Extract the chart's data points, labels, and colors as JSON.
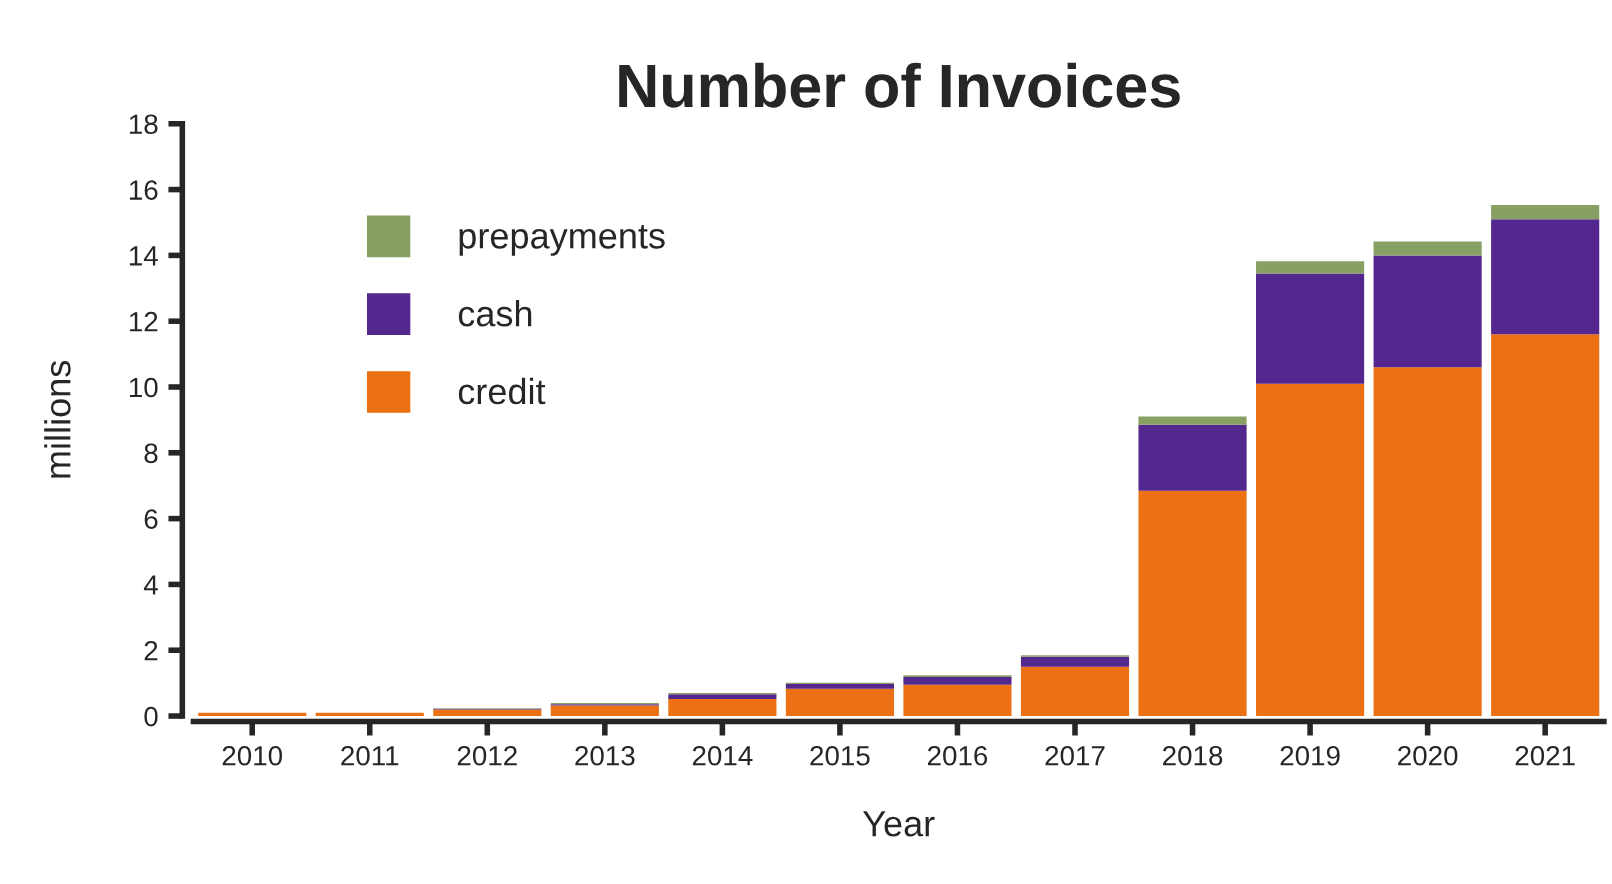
{
  "chart_data": {
    "type": "bar",
    "title": "Number of Invoices",
    "xlabel": "Year",
    "ylabel": "millions",
    "categories": [
      "2010",
      "2011",
      "2012",
      "2013",
      "2014",
      "2015",
      "2016",
      "2017",
      "2018",
      "2019",
      "2020",
      "2021"
    ],
    "stacked": true,
    "series": [
      {
        "name": "credit",
        "color": "#ec7014",
        "values": [
          0.1,
          0.1,
          0.2,
          0.32,
          0.52,
          0.83,
          0.95,
          1.5,
          6.85,
          10.1,
          10.6,
          11.6
        ]
      },
      {
        "name": "cash",
        "color": "#54278f",
        "values": [
          null,
          null,
          0.02,
          0.04,
          0.14,
          0.14,
          0.24,
          0.3,
          2.0,
          3.35,
          3.4,
          3.5
        ]
      },
      {
        "name": "prepayments",
        "color": "#88a064",
        "values": [
          null,
          null,
          0.02,
          0.04,
          0.04,
          0.04,
          0.05,
          0.05,
          0.25,
          0.37,
          0.42,
          0.43
        ]
      }
    ],
    "ylim": [
      0,
      18
    ],
    "yticks": [
      0,
      2,
      4,
      6,
      8,
      10,
      12,
      14,
      16,
      18
    ],
    "grid": false,
    "legend": "top left"
  }
}
